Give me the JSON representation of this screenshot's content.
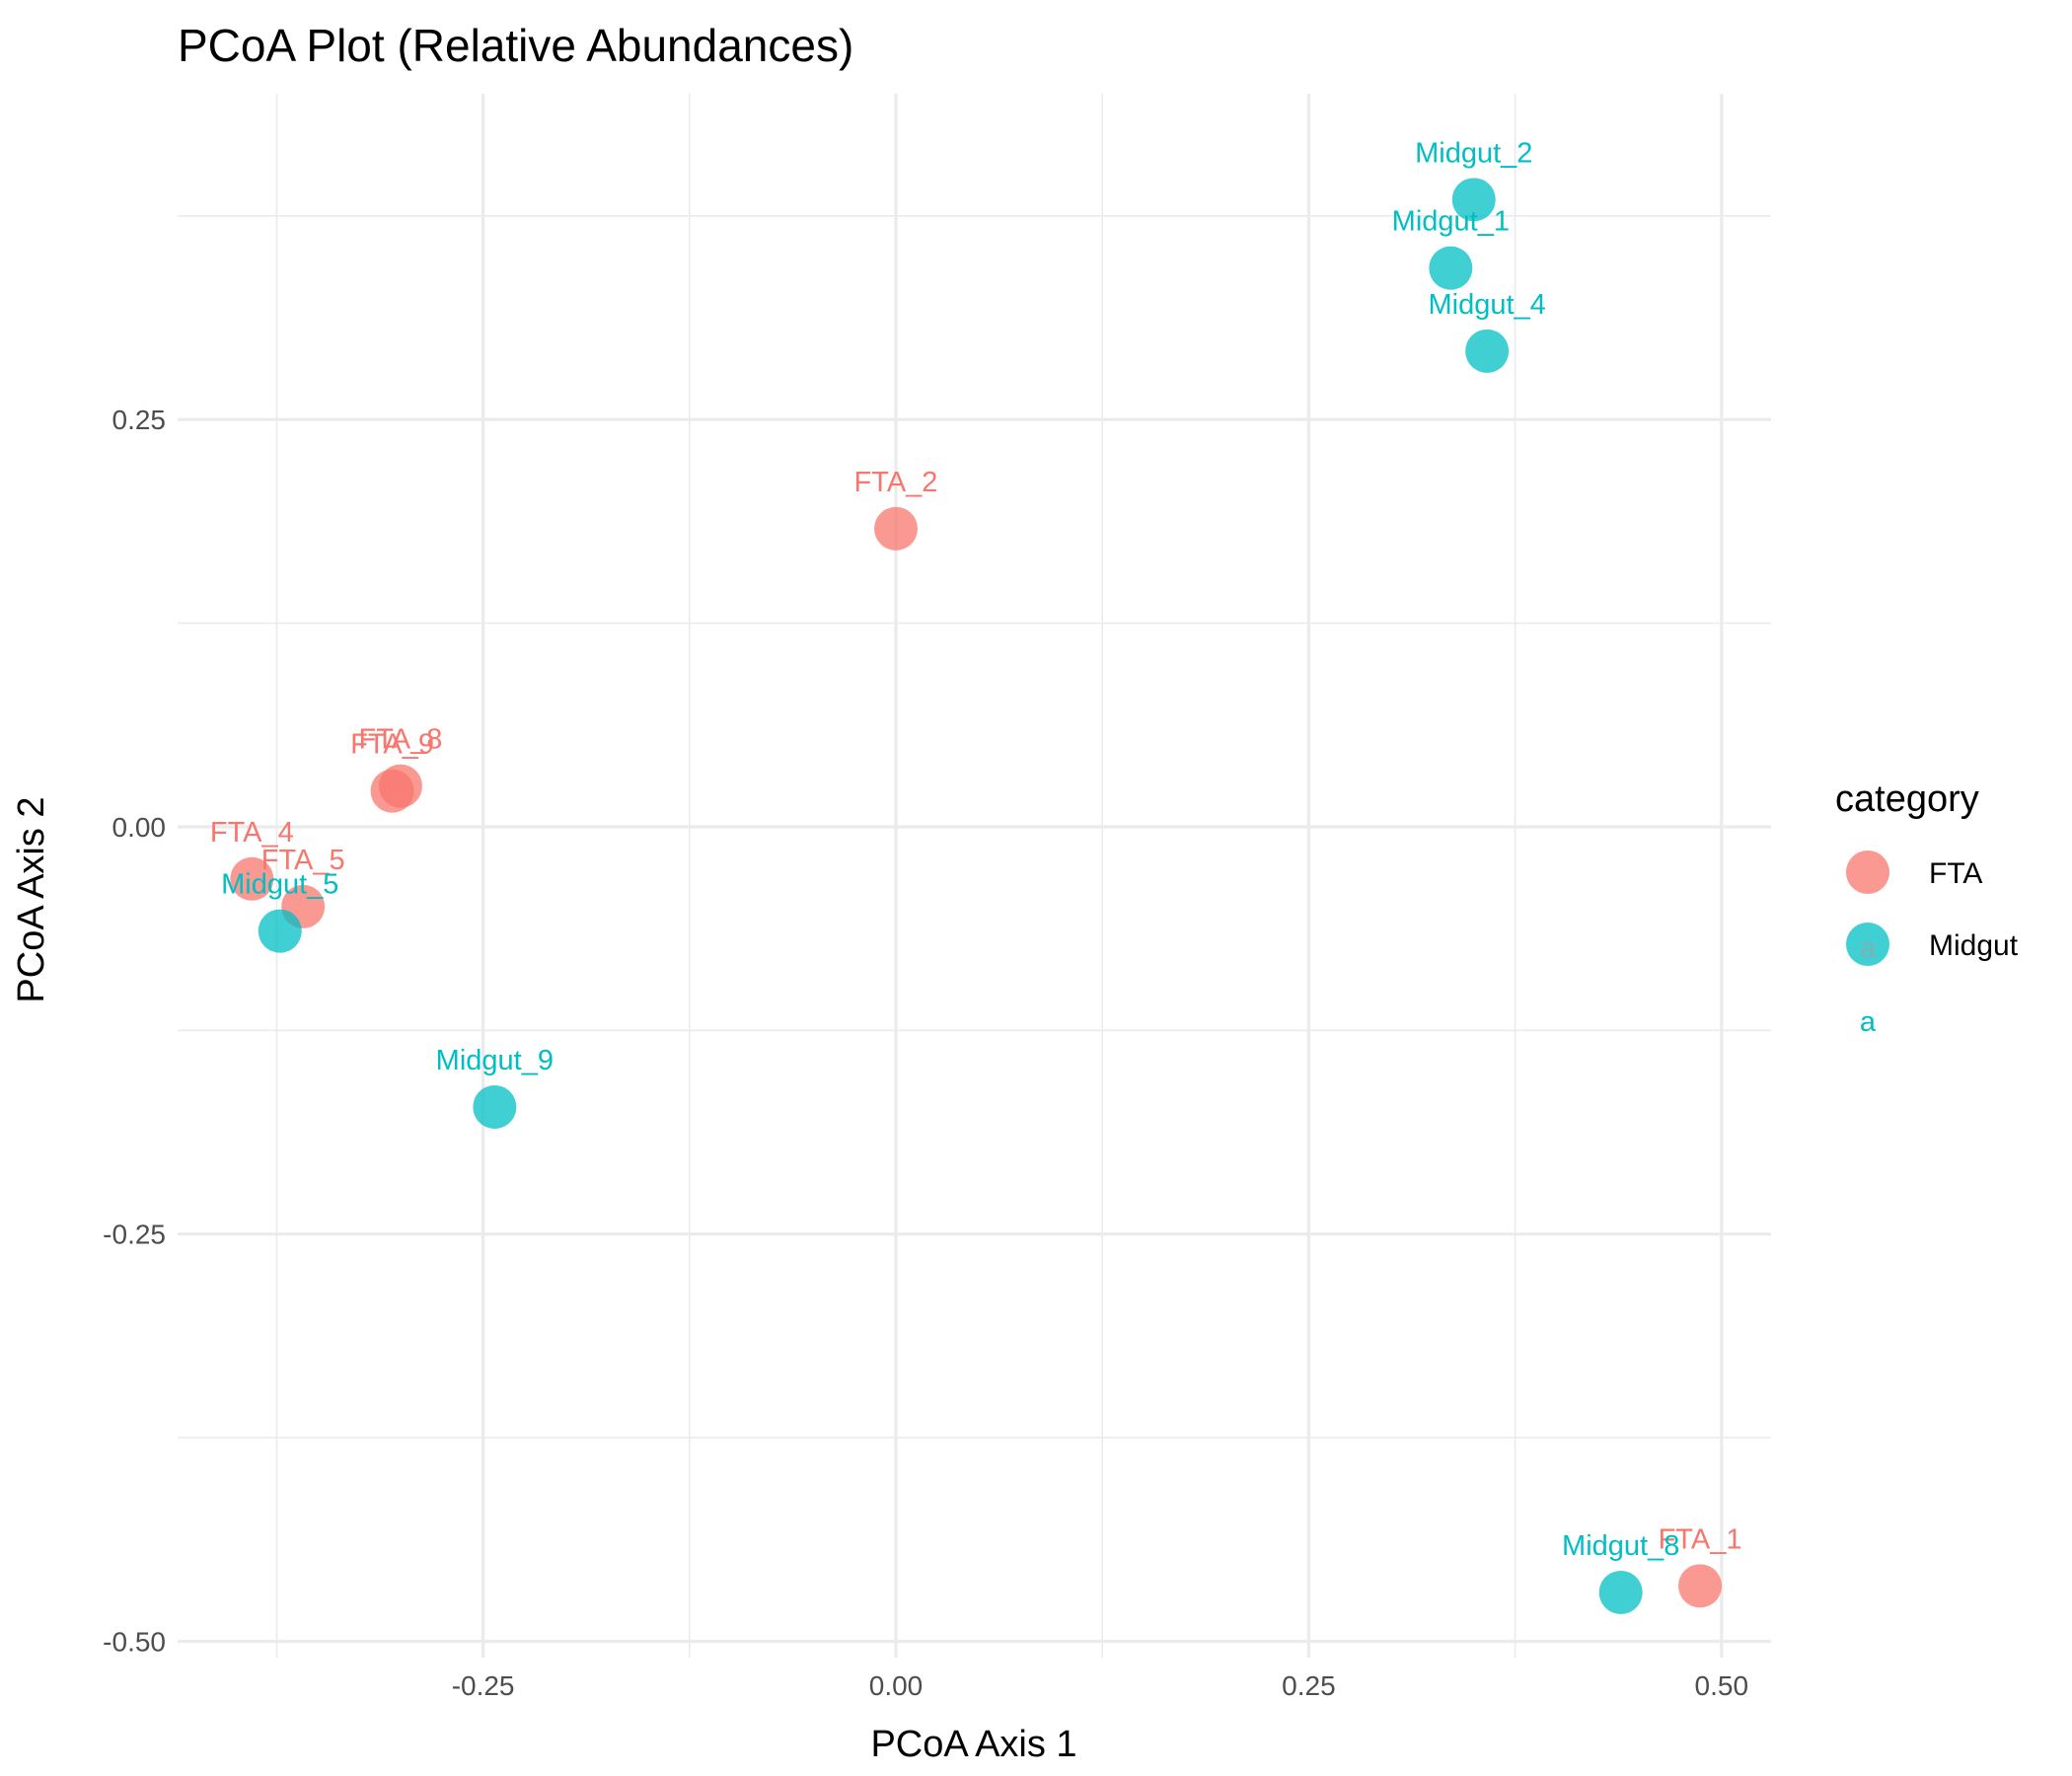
{
  "chart_data": {
    "type": "scatter",
    "title": "PCoA Plot (Relative Abundances)",
    "xlabel": "PCoA Axis 1",
    "ylabel": "PCoA Axis 2",
    "xlim": [
      -0.435,
      0.53
    ],
    "ylim": [
      -0.51,
      0.45
    ],
    "x_ticks": [
      -0.25,
      0.0,
      0.25,
      0.5
    ],
    "x_tick_labels": [
      "-0.25",
      "0.00",
      "0.25",
      "0.50"
    ],
    "y_ticks": [
      -0.5,
      -0.25,
      0.0,
      0.25
    ],
    "y_tick_labels": [
      "-0.50",
      "-0.25",
      "0.00",
      "0.25"
    ],
    "grid": true,
    "legend": {
      "title": "category",
      "placement": "right",
      "glyph_letter": "a"
    },
    "series": [
      {
        "name": "FTA",
        "color": "#F8766D",
        "points": [
          {
            "label": "FTA_1",
            "x": 0.487,
            "y": -0.466
          },
          {
            "label": "FTA_2",
            "x": 0.0,
            "y": 0.183
          },
          {
            "label": "FTA_4",
            "x": -0.39,
            "y": -0.032
          },
          {
            "label": "FTA_5",
            "x": -0.359,
            "y": -0.049
          },
          {
            "label": "FTA_8",
            "x": -0.3,
            "y": 0.025
          },
          {
            "label": "FTA_9",
            "x": -0.305,
            "y": 0.022
          }
        ]
      },
      {
        "name": "Midgut",
        "color": "#00BFC4",
        "points": [
          {
            "label": "Midgut_1",
            "x": 0.336,
            "y": 0.343
          },
          {
            "label": "Midgut_2",
            "x": 0.35,
            "y": 0.385
          },
          {
            "label": "Midgut_4",
            "x": 0.358,
            "y": 0.292
          },
          {
            "label": "Midgut_5",
            "x": -0.373,
            "y": -0.064
          },
          {
            "label": "Midgut_8",
            "x": 0.439,
            "y": -0.47
          },
          {
            "label": "Midgut_9",
            "x": -0.243,
            "y": -0.172
          }
        ]
      }
    ]
  }
}
